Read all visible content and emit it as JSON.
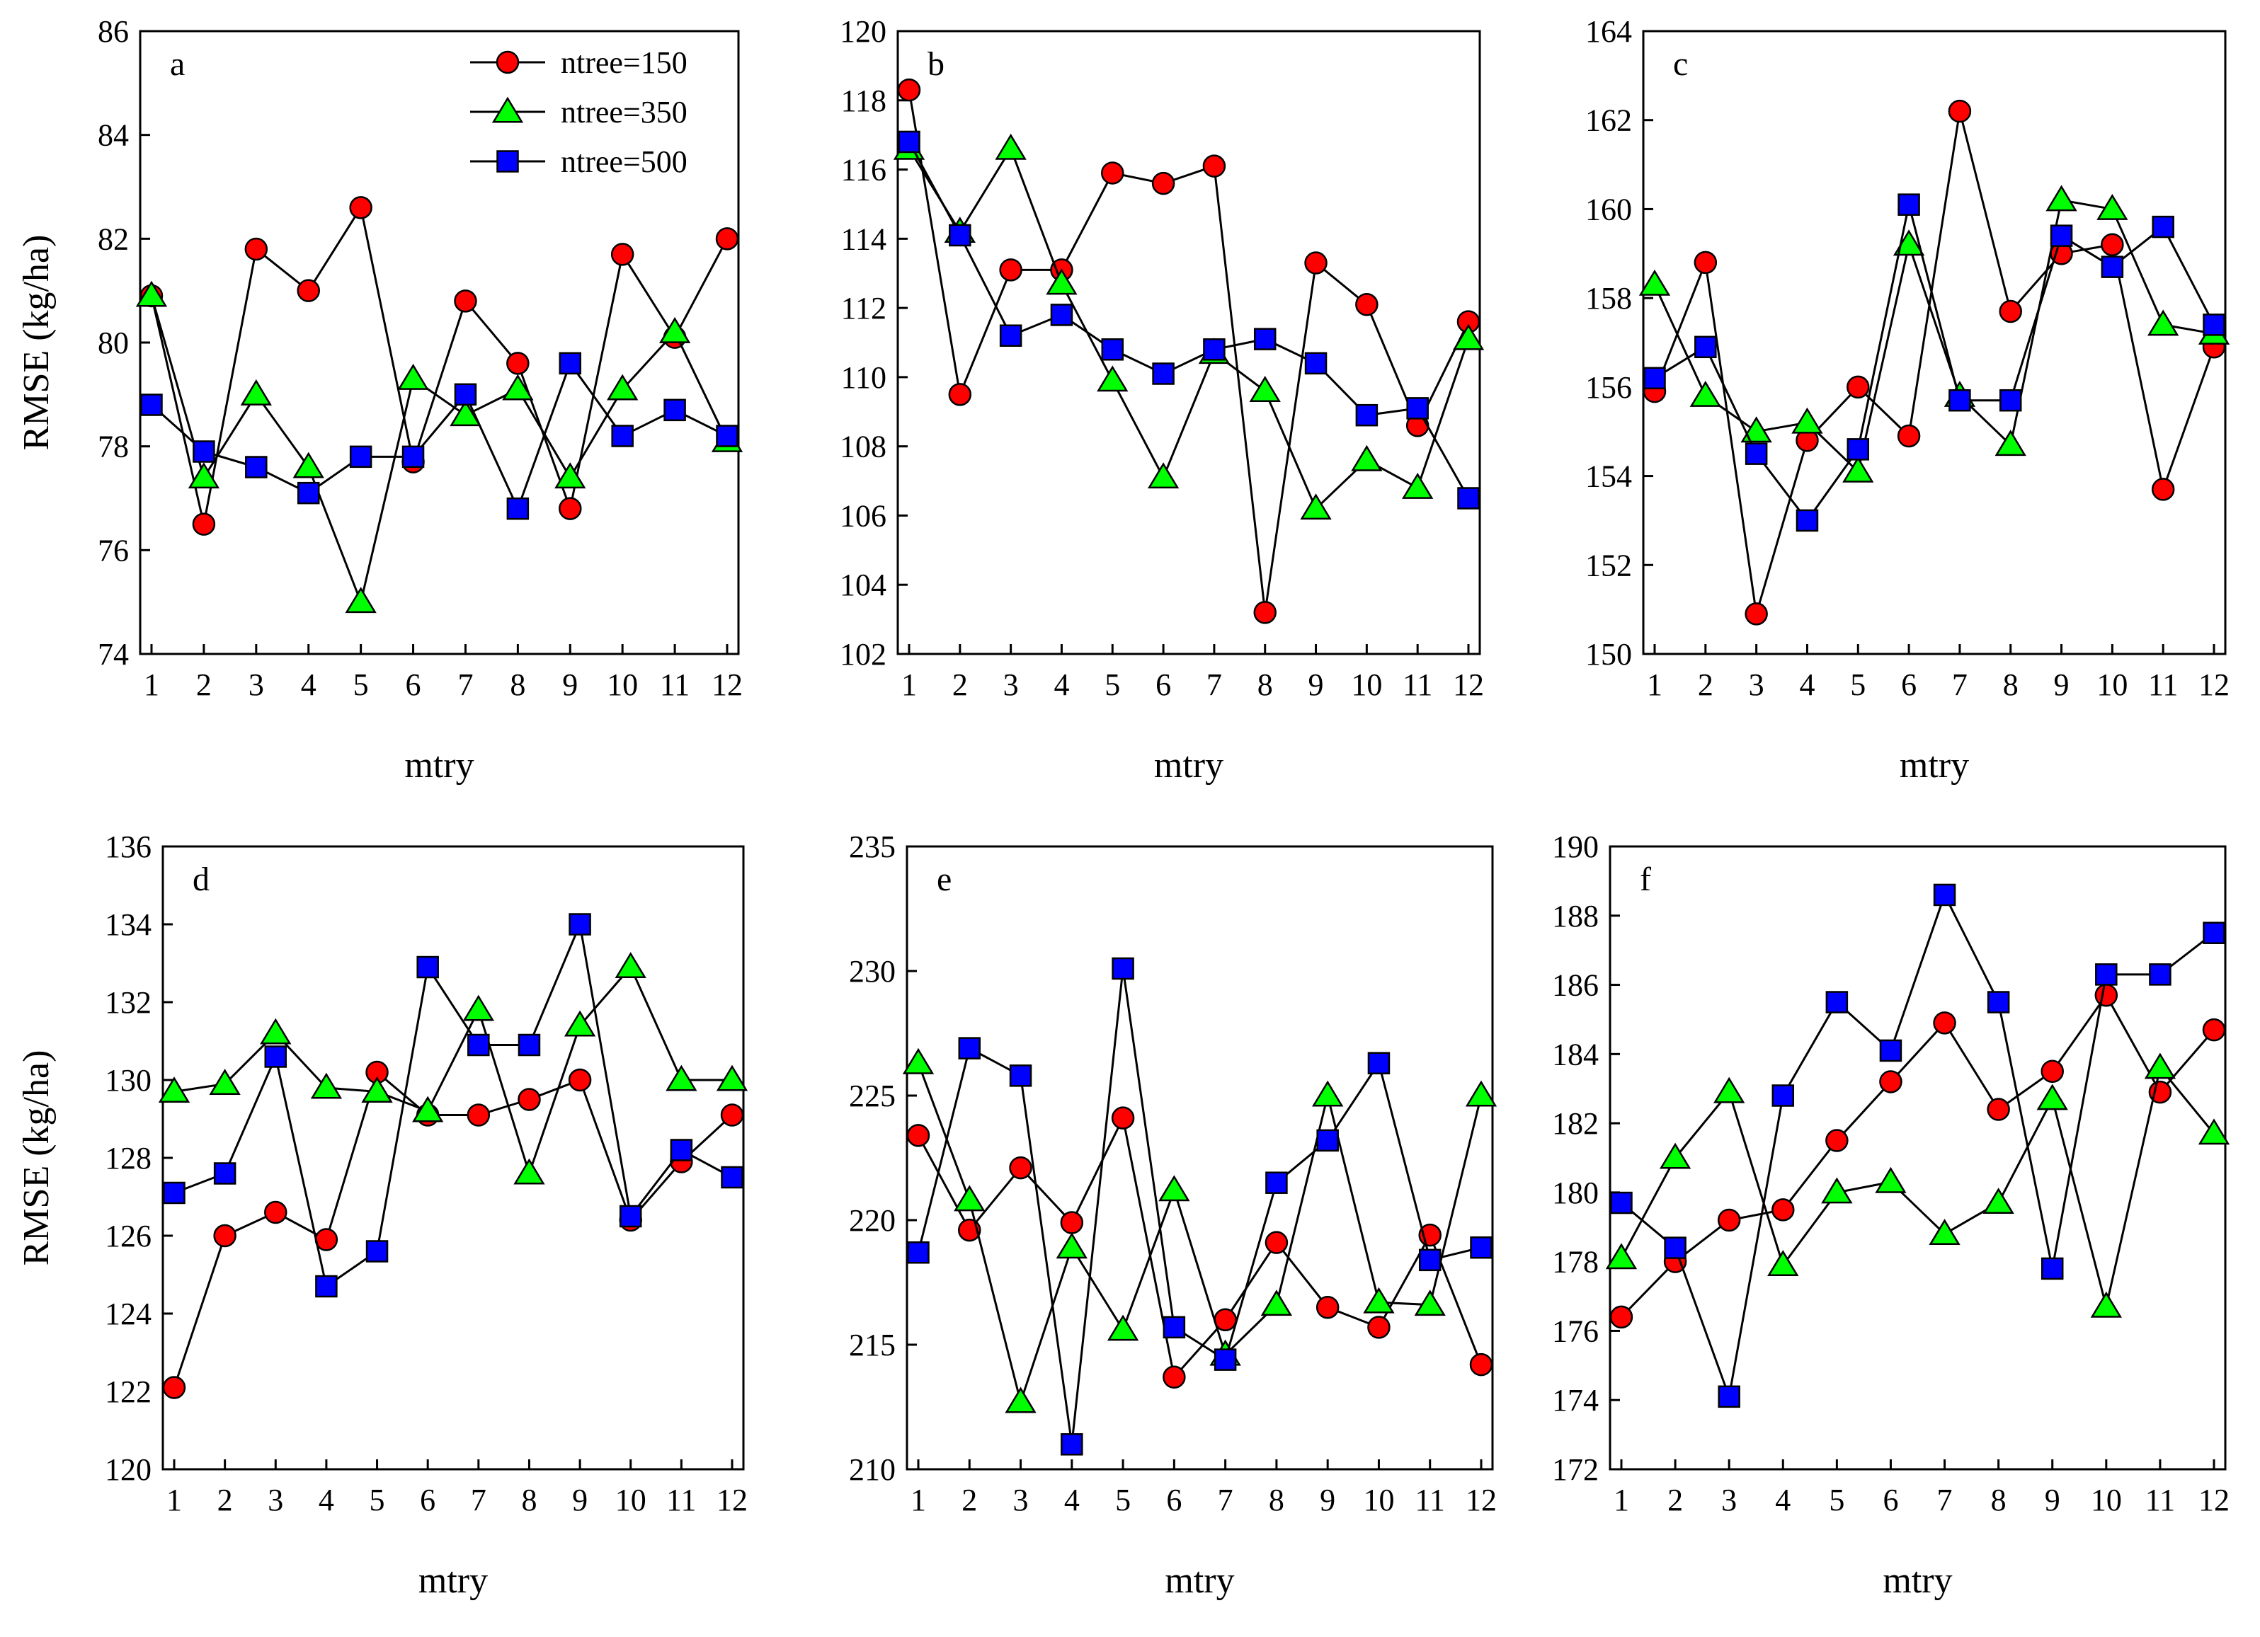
{
  "colors": {
    "ntree150": "#ff0000",
    "ntree350": "#00ff00",
    "ntree500": "#0000ff"
  },
  "legend": [
    {
      "label": "ntree=150",
      "marker": "circle",
      "color": "#ff0000"
    },
    {
      "label": "ntree=350",
      "marker": "triangle",
      "color": "#00ff00"
    },
    {
      "label": "ntree=500",
      "marker": "square",
      "color": "#0000ff"
    }
  ],
  "chart_data": [
    {
      "type": "line",
      "panel": "a",
      "xlabel": "mtry",
      "ylabel": "RMSE (kg/ha)",
      "x": [
        1,
        2,
        3,
        4,
        5,
        6,
        7,
        8,
        9,
        10,
        11,
        12
      ],
      "xticks": [
        "1",
        "2",
        "3",
        "4",
        "5",
        "6",
        "7",
        "8",
        "9",
        "10",
        "11",
        "12"
      ],
      "ylim": [
        74,
        86
      ],
      "yticks": [
        "74",
        "76",
        "78",
        "80",
        "82",
        "84",
        "86"
      ],
      "series": [
        {
          "name": "ntree=150",
          "values": [
            80.9,
            76.5,
            81.8,
            81.0,
            82.6,
            77.7,
            80.8,
            79.6,
            76.8,
            81.7,
            80.1,
            82.0
          ]
        },
        {
          "name": "ntree=350",
          "values": [
            80.9,
            77.4,
            79.0,
            77.6,
            75.0,
            79.3,
            78.6,
            79.1,
            77.4,
            79.1,
            80.2,
            78.1
          ]
        },
        {
          "name": "ntree=500",
          "values": [
            78.8,
            77.9,
            77.6,
            77.1,
            77.8,
            77.8,
            79.0,
            76.8,
            79.6,
            78.2,
            78.7,
            78.2
          ]
        }
      ]
    },
    {
      "type": "line",
      "panel": "b",
      "xlabel": "mtry",
      "ylabel": "",
      "x": [
        1,
        2,
        3,
        4,
        5,
        6,
        7,
        8,
        9,
        10,
        11,
        12
      ],
      "xticks": [
        "1",
        "2",
        "3",
        "4",
        "5",
        "6",
        "7",
        "8",
        "9",
        "10",
        "11",
        "12"
      ],
      "ylim": [
        102,
        120
      ],
      "yticks": [
        "102",
        "104",
        "106",
        "108",
        "110",
        "112",
        "114",
        "116",
        "118",
        "120"
      ],
      "series": [
        {
          "name": "ntree=150",
          "values": [
            118.3,
            109.5,
            113.1,
            113.1,
            115.9,
            115.6,
            116.1,
            103.2,
            113.3,
            112.1,
            108.6,
            111.6
          ]
        },
        {
          "name": "ntree=350",
          "values": [
            116.6,
            114.2,
            116.6,
            112.7,
            109.9,
            107.1,
            110.7,
            109.6,
            106.2,
            107.6,
            106.8,
            111.1
          ]
        },
        {
          "name": "ntree=500",
          "values": [
            116.8,
            114.1,
            111.2,
            111.8,
            110.8,
            110.1,
            110.8,
            111.1,
            110.4,
            108.9,
            109.1,
            106.5
          ]
        }
      ]
    },
    {
      "type": "line",
      "panel": "c",
      "xlabel": "mtry",
      "ylabel": "",
      "x": [
        1,
        2,
        3,
        4,
        5,
        6,
        7,
        8,
        9,
        10,
        11,
        12
      ],
      "xticks": [
        "1",
        "2",
        "3",
        "4",
        "5",
        "6",
        "7",
        "8",
        "9",
        "10",
        "11",
        "12"
      ],
      "ylim": [
        150,
        164
      ],
      "yticks": [
        "150",
        "152",
        "154",
        "156",
        "158",
        "160",
        "162",
        "164"
      ],
      "series": [
        {
          "name": "ntree=150",
          "values": [
            155.9,
            158.8,
            150.9,
            154.8,
            156.0,
            154.9,
            162.2,
            157.7,
            159.0,
            159.2,
            153.7,
            156.9
          ]
        },
        {
          "name": "ntree=350",
          "values": [
            158.3,
            155.8,
            155.0,
            155.2,
            154.1,
            159.2,
            155.8,
            154.7,
            160.2,
            160.0,
            157.4,
            157.2
          ]
        },
        {
          "name": "ntree=500",
          "values": [
            156.2,
            156.9,
            154.5,
            153.0,
            154.6,
            160.1,
            155.7,
            155.7,
            159.4,
            158.7,
            159.6,
            157.4
          ]
        }
      ]
    },
    {
      "type": "line",
      "panel": "d",
      "xlabel": "mtry",
      "ylabel": "RMSE (kg/ha)",
      "x": [
        1,
        2,
        3,
        4,
        5,
        6,
        7,
        8,
        9,
        10,
        11,
        12
      ],
      "xticks": [
        "1",
        "2",
        "3",
        "4",
        "5",
        "6",
        "7",
        "8",
        "9",
        "10",
        "11",
        "12"
      ],
      "ylim": [
        120,
        136
      ],
      "yticks": [
        "120",
        "122",
        "124",
        "126",
        "128",
        "130",
        "132",
        "134",
        "136"
      ],
      "series": [
        {
          "name": "ntree=150",
          "values": [
            122.1,
            126.0,
            126.6,
            125.9,
            130.2,
            129.1,
            129.1,
            129.5,
            130.0,
            126.4,
            127.9,
            129.1
          ]
        },
        {
          "name": "ntree=350",
          "values": [
            129.7,
            129.9,
            131.2,
            129.8,
            129.7,
            129.2,
            131.8,
            127.6,
            131.4,
            132.9,
            130.0,
            130.0
          ]
        },
        {
          "name": "ntree=500",
          "values": [
            127.1,
            127.6,
            130.6,
            124.7,
            125.6,
            132.9,
            130.9,
            130.9,
            134.0,
            126.5,
            128.2,
            127.5
          ]
        }
      ]
    },
    {
      "type": "line",
      "panel": "e",
      "xlabel": "mtry",
      "ylabel": "",
      "x": [
        1,
        2,
        3,
        4,
        5,
        6,
        7,
        8,
        9,
        10,
        11,
        12
      ],
      "xticks": [
        "1",
        "2",
        "3",
        "4",
        "5",
        "6",
        "7",
        "8",
        "9",
        "10",
        "11",
        "12"
      ],
      "ylim": [
        210,
        235
      ],
      "yticks": [
        "210",
        "215",
        "220",
        "225",
        "230",
        "235"
      ],
      "series": [
        {
          "name": "ntree=150",
          "values": [
            223.4,
            219.6,
            222.1,
            219.9,
            224.1,
            213.7,
            216.0,
            219.1,
            216.5,
            215.7,
            219.4,
            214.2
          ]
        },
        {
          "name": "ntree=350",
          "values": [
            226.3,
            220.8,
            212.7,
            218.9,
            215.6,
            221.2,
            214.6,
            216.6,
            225.0,
            216.7,
            216.6,
            225.0
          ]
        },
        {
          "name": "ntree=500",
          "values": [
            218.7,
            226.9,
            225.8,
            211.0,
            230.1,
            215.7,
            214.4,
            221.5,
            223.2,
            226.3,
            218.4,
            218.9
          ]
        }
      ]
    },
    {
      "type": "line",
      "panel": "f",
      "xlabel": "mtry",
      "ylabel": "",
      "x": [
        1,
        2,
        3,
        4,
        5,
        6,
        7,
        8,
        9,
        10,
        11,
        12
      ],
      "xticks": [
        "1",
        "2",
        "3",
        "4",
        "5",
        "6",
        "7",
        "8",
        "9",
        "10",
        "11",
        "12"
      ],
      "ylim": [
        172,
        190
      ],
      "yticks": [
        "172",
        "174",
        "176",
        "178",
        "180",
        "182",
        "184",
        "186",
        "188",
        "190"
      ],
      "series": [
        {
          "name": "ntree=150",
          "values": [
            176.4,
            178.0,
            179.2,
            179.5,
            181.5,
            183.2,
            184.9,
            182.4,
            183.5,
            185.7,
            182.9,
            184.7
          ]
        },
        {
          "name": "ntree=350",
          "values": [
            178.1,
            181.0,
            182.9,
            177.9,
            180.0,
            180.3,
            178.8,
            179.7,
            182.7,
            176.7,
            183.6,
            181.7
          ]
        },
        {
          "name": "ntree=500",
          "values": [
            179.7,
            178.4,
            174.1,
            182.8,
            185.5,
            184.1,
            188.6,
            185.5,
            177.8,
            186.3,
            186.3,
            187.5
          ]
        }
      ]
    }
  ]
}
